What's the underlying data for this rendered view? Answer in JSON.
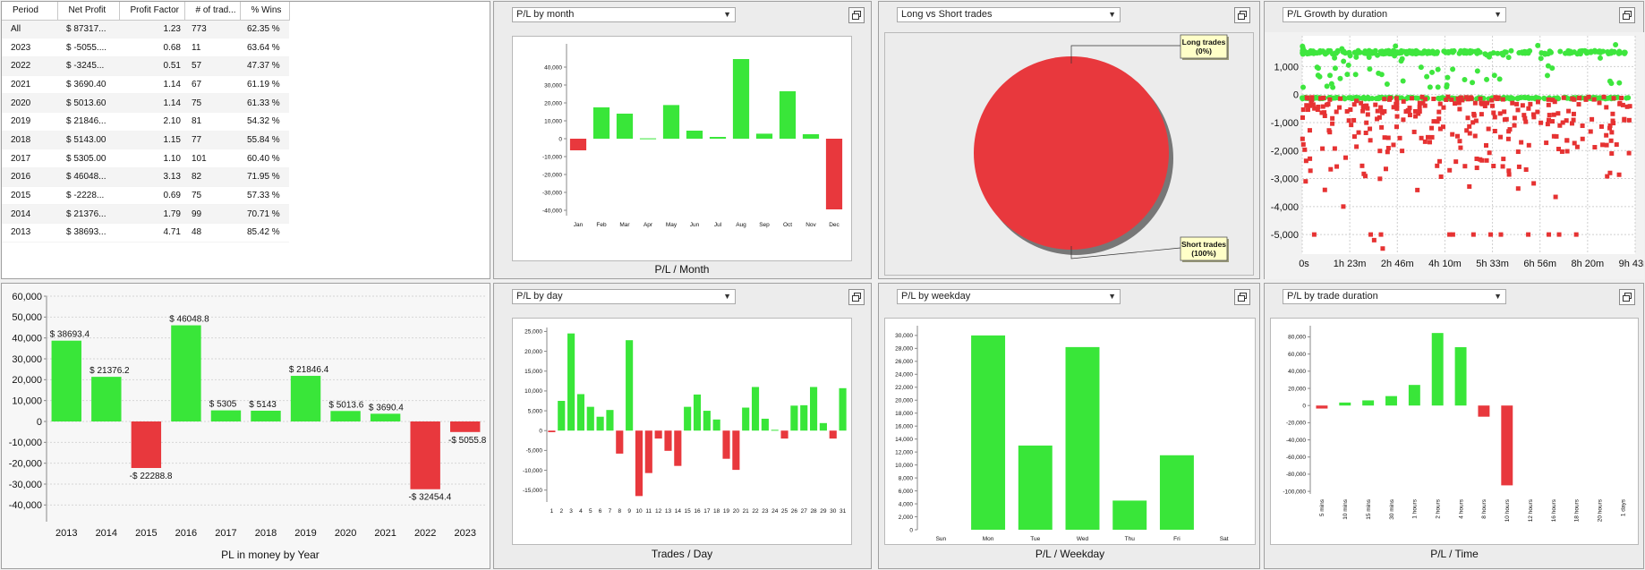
{
  "colors": {
    "pos": "#39e639",
    "neg": "#e8383d",
    "grid": "#cfcfcf",
    "scatter_green": "#3ee63e",
    "scatter_red": "#e63232"
  },
  "table": {
    "headers": [
      "Period",
      "Net Profit",
      "Profit Factor",
      "# of trad...",
      "% Wins"
    ],
    "rows": [
      {
        "period": "All",
        "net": "$ 87317...",
        "pf": "1.23",
        "trades": "773",
        "wins": "62.35 %",
        "sign": "pos"
      },
      {
        "period": "2023",
        "net": "$ -5055....",
        "pf": "0.68",
        "trades": "11",
        "wins": "63.64 %",
        "sign": "neg"
      },
      {
        "period": "2022",
        "net": "$ -3245...",
        "pf": "0.51",
        "trades": "57",
        "wins": "47.37 %",
        "sign": "neg"
      },
      {
        "period": "2021",
        "net": "$ 3690.40",
        "pf": "1.14",
        "trades": "67",
        "wins": "61.19 %",
        "sign": "pos"
      },
      {
        "period": "2020",
        "net": "$ 5013.60",
        "pf": "1.14",
        "trades": "75",
        "wins": "61.33 %",
        "sign": "pos"
      },
      {
        "period": "2019",
        "net": "$ 21846...",
        "pf": "2.10",
        "trades": "81",
        "wins": "54.32 %",
        "sign": "pos"
      },
      {
        "period": "2018",
        "net": "$ 5143.00",
        "pf": "1.15",
        "trades": "77",
        "wins": "55.84 %",
        "sign": "pos"
      },
      {
        "period": "2017",
        "net": "$ 5305.00",
        "pf": "1.10",
        "trades": "101",
        "wins": "60.40 %",
        "sign": "pos"
      },
      {
        "period": "2016",
        "net": "$ 46048...",
        "pf": "3.13",
        "trades": "82",
        "wins": "71.95 %",
        "sign": "pos"
      },
      {
        "period": "2015",
        "net": "$ -2228...",
        "pf": "0.69",
        "trades": "75",
        "wins": "57.33 %",
        "sign": "neg"
      },
      {
        "period": "2014",
        "net": "$ 21376...",
        "pf": "1.79",
        "trades": "99",
        "wins": "70.71 %",
        "sign": "pos"
      },
      {
        "period": "2013",
        "net": "$ 38693...",
        "pf": "4.71",
        "trades": "48",
        "wins": "85.42 %",
        "sign": "pos"
      }
    ]
  },
  "panels": {
    "month": {
      "dropdown": "P/L by month"
    },
    "longshort": {
      "dropdown": "Long vs Short trades"
    },
    "growth": {
      "dropdown": "P/L Growth by duration"
    },
    "day": {
      "dropdown": "P/L by day"
    },
    "weekday": {
      "dropdown": "P/L by weekday"
    },
    "tradeduration": {
      "dropdown": "P/L by trade duration"
    }
  },
  "icons": {
    "maximize": "maximize-icon",
    "dropdown": "chevron-down-icon"
  },
  "chart_data": [
    {
      "id": "month",
      "type": "bar",
      "xlabel": "P/L / Month",
      "categories": [
        "Jan",
        "Feb",
        "Mar",
        "Apr",
        "May",
        "Jun",
        "Jul",
        "Aug",
        "Sep",
        "Oct",
        "Nov",
        "Dec"
      ],
      "values": [
        -6500,
        17500,
        14000,
        200,
        18800,
        4500,
        1000,
        44500,
        2800,
        26500,
        2500,
        -39500
      ],
      "ylim": [
        -43000,
        53000
      ],
      "yticks": [
        -40000,
        -30000,
        -20000,
        -10000,
        0,
        10000,
        20000,
        30000,
        40000
      ],
      "yticklabels": [
        "-40,000",
        "-30,000",
        "-20,000",
        "-10,000",
        "0",
        "10,000",
        "20,000",
        "30,000",
        "40,000"
      ],
      "grid": false
    },
    {
      "id": "longshort",
      "type": "pie",
      "labels": [
        "Long trades\n(0%)",
        "Short trades\n(100%)"
      ],
      "label_lines": [
        [
          "Long trades",
          "(0%)"
        ],
        [
          "Short trades",
          "(100%)"
        ]
      ],
      "values": [
        0,
        100
      ]
    },
    {
      "id": "growth",
      "type": "scatter",
      "xticklabels": [
        "0s",
        "1h 23m",
        "2h 46m",
        "4h 10m",
        "5h 33m",
        "6h 56m",
        "8h 20m",
        "9h 43m"
      ],
      "xlim": [
        0,
        9.72
      ],
      "yticks": [
        1000,
        0,
        -1000,
        -2000,
        -3000,
        -4000,
        -5000
      ],
      "yticklabels": [
        "1,000",
        "0",
        "-1,000",
        "-2,000",
        "-3,000",
        "-4,000",
        "-5,000"
      ],
      "ylim": [
        -5700,
        2100
      ],
      "grid": true
    },
    {
      "id": "yearly",
      "type": "bar",
      "xlabel": "PL in money by Year",
      "categories": [
        "2013",
        "2014",
        "2015",
        "2016",
        "2017",
        "2018",
        "2019",
        "2020",
        "2021",
        "2022",
        "2023"
      ],
      "values": [
        38693.4,
        21376.2,
        -22288.8,
        46048.8,
        5305,
        5143,
        21846.4,
        5013.6,
        3690.4,
        -32454.4,
        -5055.8
      ],
      "datalabels": [
        "$ 38693.4",
        "$ 21376.2",
        "-$ 22288.8",
        "$ 46048.8",
        "$ 5305",
        "$ 5143",
        "$ 21846.4",
        "$ 5013.6",
        "$ 3690.4",
        "-$ 32454.4",
        "-$ 5055.8"
      ],
      "ylim": [
        -48000,
        60000
      ],
      "yticks": [
        60000,
        50000,
        40000,
        30000,
        20000,
        10000,
        0,
        -10000,
        -20000,
        -30000,
        -40000
      ],
      "yticklabels": [
        "60,000",
        "50,000",
        "40,000",
        "30,000",
        "20,000",
        "10,000",
        "0",
        "-10,000",
        "-20,000",
        "-30,000",
        "-40,000"
      ],
      "grid": true
    },
    {
      "id": "day",
      "type": "bar",
      "xlabel": "Trades / Day",
      "categories": [
        "1",
        "2",
        "3",
        "4",
        "5",
        "6",
        "7",
        "8",
        "9",
        "10",
        "11",
        "12",
        "13",
        "14",
        "15",
        "16",
        "17",
        "18",
        "19",
        "20",
        "21",
        "22",
        "23",
        "24",
        "25",
        "26",
        "27",
        "28",
        "29",
        "30",
        "31"
      ],
      "values": [
        -400,
        7500,
        24500,
        9200,
        6000,
        3500,
        5200,
        -5800,
        22800,
        -16500,
        -10700,
        -2000,
        -5100,
        -8900,
        6000,
        9100,
        5000,
        2800,
        -7100,
        -9900,
        5800,
        11000,
        3000,
        200,
        -2000,
        6300,
        6400,
        11000,
        1900,
        -2000,
        10700
      ],
      "ylim": [
        -18000,
        26000
      ],
      "yticks": [
        25000,
        20000,
        15000,
        10000,
        5000,
        0,
        -5000,
        -10000,
        -15000
      ],
      "yticklabels": [
        "25,000",
        "20,000",
        "15,000",
        "10,000",
        "5,000",
        "0",
        "-5,000",
        "-10,000",
        "-15,000"
      ],
      "grid": false
    },
    {
      "id": "weekday",
      "type": "bar",
      "xlabel": "P/L / Weekday",
      "categories": [
        "Sun",
        "Mon",
        "Tue",
        "Wed",
        "Thu",
        "Fri",
        "Sat"
      ],
      "values": [
        0,
        30000,
        13000,
        28200,
        4500,
        11500,
        0
      ],
      "ylim": [
        0,
        31500
      ],
      "yticks": [
        0,
        2000,
        4000,
        6000,
        8000,
        10000,
        12000,
        14000,
        16000,
        18000,
        20000,
        22000,
        24000,
        26000,
        28000,
        30000
      ],
      "yticklabels": [
        "0",
        "2,000",
        "4,000",
        "6,000",
        "8,000",
        "10,000",
        "12,000",
        "14,000",
        "16,000",
        "18,000",
        "20,000",
        "22,000",
        "24,000",
        "26,000",
        "28,000",
        "30,000"
      ],
      "grid": false
    },
    {
      "id": "tradeduration",
      "type": "bar",
      "xlabel": "P/L / Time",
      "categories": [
        "5 mins",
        "10 mins",
        "15 mins",
        "30 mins",
        "1 hours",
        "2 hours",
        "4 hours",
        "8 hours",
        "10 hours",
        "12 hours",
        "16 hours",
        "18 hours",
        "20 hours",
        "1 days"
      ],
      "values": [
        -3500,
        3500,
        6000,
        11000,
        24000,
        84500,
        68000,
        -13000,
        -93000,
        0,
        0,
        0,
        0,
        0
      ],
      "ylim": [
        -103000,
        93000
      ],
      "yticks": [
        80000,
        60000,
        40000,
        20000,
        0,
        -20000,
        -40000,
        -60000,
        -80000,
        -100000
      ],
      "yticklabels": [
        "80,000",
        "60,000",
        "40,000",
        "20,000",
        "0",
        "-20,000",
        "-40,000",
        "-60,000",
        "-80,000",
        "-100,000"
      ],
      "grid": false
    }
  ]
}
